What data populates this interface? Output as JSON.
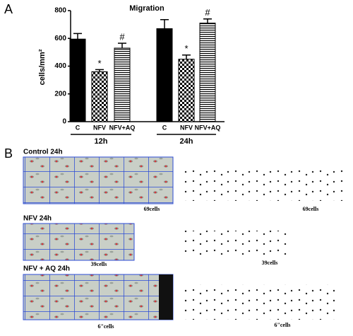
{
  "chart_data": {
    "type": "bar",
    "title": "Migration",
    "panel": "A",
    "y_label": "cells/mm²",
    "categories": [
      "C",
      "NFV",
      "NFV+AQ",
      "C",
      "NFV",
      "NFV+AQ"
    ],
    "groups": [
      "12h",
      "24h"
    ],
    "values": [
      595,
      360,
      530,
      670,
      450,
      710
    ],
    "errors": [
      40,
      15,
      35,
      65,
      30,
      30
    ],
    "markers": [
      null,
      "*",
      "#",
      null,
      "*",
      "#"
    ],
    "patterns": [
      "solid",
      "checker",
      "stripes",
      "solid",
      "checker",
      "stripes"
    ],
    "color": "#000000",
    "ylim": [
      0,
      800
    ],
    "yticks": [
      0,
      200,
      400,
      600,
      800
    ]
  },
  "panel_b": {
    "panel": "B",
    "rows": [
      {
        "label": "Control 24h",
        "count_left": "69cells",
        "count_right": "69cells"
      },
      {
        "label": "NFV 24h",
        "count_left": "39cells",
        "count_right": "39cells"
      },
      {
        "label": "NFV + AQ 24h",
        "count_left": "6\"cells",
        "count_right": "6\"cells"
      }
    ]
  }
}
